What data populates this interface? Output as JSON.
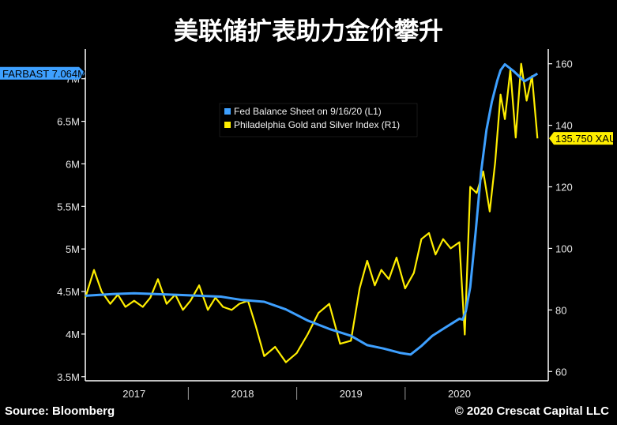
{
  "title": "美联储扩表助力金价攀升",
  "footer": {
    "source": "Source: Bloomberg",
    "copyright": "© 2020 Crescat Capital LLC"
  },
  "chart_data": {
    "type": "line",
    "colors": {
      "fed": "#3ea0ff",
      "gold": "#ffee00",
      "background": "#000000",
      "axis": "#ffffff"
    },
    "x_range": [
      2016.55,
      2020.82
    ],
    "left_axis": {
      "ticks": [
        {
          "v": 3.5,
          "label": "3.5M"
        },
        {
          "v": 4.0,
          "label": "4M"
        },
        {
          "v": 4.5,
          "label": "4.5M"
        },
        {
          "v": 5.0,
          "label": "5M"
        },
        {
          "v": 5.5,
          "label": "5.5M"
        },
        {
          "v": 6.0,
          "label": "6M"
        },
        {
          "v": 6.5,
          "label": "6.5M"
        },
        {
          "v": 7.0,
          "label": "7M"
        }
      ],
      "range": [
        3.47,
        7.35
      ]
    },
    "right_axis": {
      "ticks": [
        60,
        80,
        100,
        120,
        140,
        160
      ],
      "range": [
        57.5,
        164.8
      ]
    },
    "categories": [
      {
        "label": "2017",
        "center": 2017.0
      },
      {
        "label": "2018",
        "center": 2018.0
      },
      {
        "label": "2019",
        "center": 2019.0
      },
      {
        "label": "2020",
        "center": 2020.0
      }
    ],
    "year_separators": [
      2017.5,
      2018.5,
      2019.5
    ],
    "legend": [
      {
        "name": "Fed Balance Sheet on 9/16/20 (L1)",
        "color": "#3ea0ff"
      },
      {
        "name": "Philadelphia Gold and Silver Index (R1)",
        "color": "#ffee00"
      }
    ],
    "last_values": {
      "fed": {
        "value": 7.064,
        "label": "FARBAST 7.064M"
      },
      "gold": {
        "value": 135.75,
        "label": "135.750 XAU"
      }
    },
    "series": [
      {
        "name": "Fed Balance Sheet on 9/16/20 (L1)",
        "axis": "left",
        "x": [
          2016.55,
          2016.8,
          2017.0,
          2017.2,
          2017.4,
          2017.6,
          2017.8,
          2017.9,
          2018.0,
          2018.2,
          2018.4,
          2018.6,
          2018.8,
          2019.0,
          2019.15,
          2019.3,
          2019.45,
          2019.55,
          2019.65,
          2019.75,
          2019.85,
          2019.95,
          2020.0,
          2020.03,
          2020.06,
          2020.1,
          2020.15,
          2020.2,
          2020.25,
          2020.3,
          2020.35,
          2020.38,
          2020.42,
          2020.5,
          2020.6,
          2020.72
        ],
        "values": [
          4.45,
          4.47,
          4.48,
          4.47,
          4.46,
          4.45,
          4.44,
          4.42,
          4.4,
          4.38,
          4.29,
          4.16,
          4.06,
          3.98,
          3.87,
          3.83,
          3.78,
          3.76,
          3.86,
          3.98,
          4.06,
          4.14,
          4.18,
          4.17,
          4.27,
          4.55,
          5.2,
          5.9,
          6.4,
          6.73,
          6.98,
          7.1,
          7.17,
          7.09,
          6.97,
          7.06
        ]
      },
      {
        "name": "Philadelphia Gold and Silver Index (R1)",
        "axis": "right",
        "x": [
          2016.55,
          2016.63,
          2016.7,
          2016.78,
          2016.85,
          2016.92,
          2017.0,
          2017.08,
          2017.15,
          2017.22,
          2017.3,
          2017.38,
          2017.45,
          2017.52,
          2017.6,
          2017.68,
          2017.75,
          2017.82,
          2017.9,
          2017.97,
          2018.05,
          2018.12,
          2018.2,
          2018.3,
          2018.4,
          2018.5,
          2018.6,
          2018.7,
          2018.8,
          2018.9,
          2019.0,
          2019.08,
          2019.15,
          2019.22,
          2019.28,
          2019.35,
          2019.42,
          2019.5,
          2019.58,
          2019.65,
          2019.72,
          2019.78,
          2019.85,
          2019.92,
          2020.0,
          2020.05,
          2020.1,
          2020.16,
          2020.22,
          2020.28,
          2020.33,
          2020.38,
          2020.42,
          2020.47,
          2020.52,
          2020.57,
          2020.62,
          2020.67,
          2020.72
        ],
        "values": [
          84,
          93,
          86,
          82,
          85,
          81,
          83,
          81,
          84,
          90,
          82,
          85,
          80,
          83,
          88,
          80,
          84,
          81,
          80,
          82,
          83,
          75,
          65,
          68,
          63,
          66,
          72,
          79,
          82,
          69,
          70,
          87,
          96,
          88,
          93,
          90,
          97,
          87,
          92,
          103,
          105,
          98,
          103,
          100,
          102,
          72,
          120,
          118,
          125,
          112,
          128,
          150,
          142,
          158,
          136,
          160,
          148,
          156,
          135.75
        ]
      }
    ]
  }
}
